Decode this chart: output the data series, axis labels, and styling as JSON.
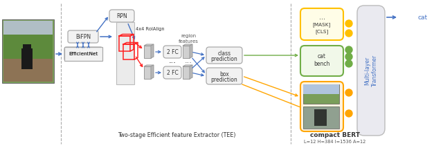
{
  "bg_color": "#ffffff",
  "fig_width": 6.4,
  "fig_height": 2.14,
  "dpi": 100,
  "title_tee": "Two-stage Efficient feature Extractor (TEE)",
  "title_bert": "compact BERT",
  "subtitle_bert": "L=12 H=384 I=1536 A=12",
  "blue": "#4472C4",
  "red": "#FF2020",
  "orange": "#FFA500",
  "green": "#70AD47",
  "yellow_border": "#FFC000",
  "green_border": "#70AD47",
  "orange_border": "#FFA500",
  "gray_fill": "#F2F2F2",
  "transformer_fill": "#EAEAF0",
  "transformer_text": "#4472C4",
  "dot_yellow": "#FFC000",
  "dot_green": "#70AD47",
  "dot_orange": "#FFA500",
  "dash_color": "#AAAAAA",
  "text_dark": "#333333",
  "text_mid": "#555555"
}
